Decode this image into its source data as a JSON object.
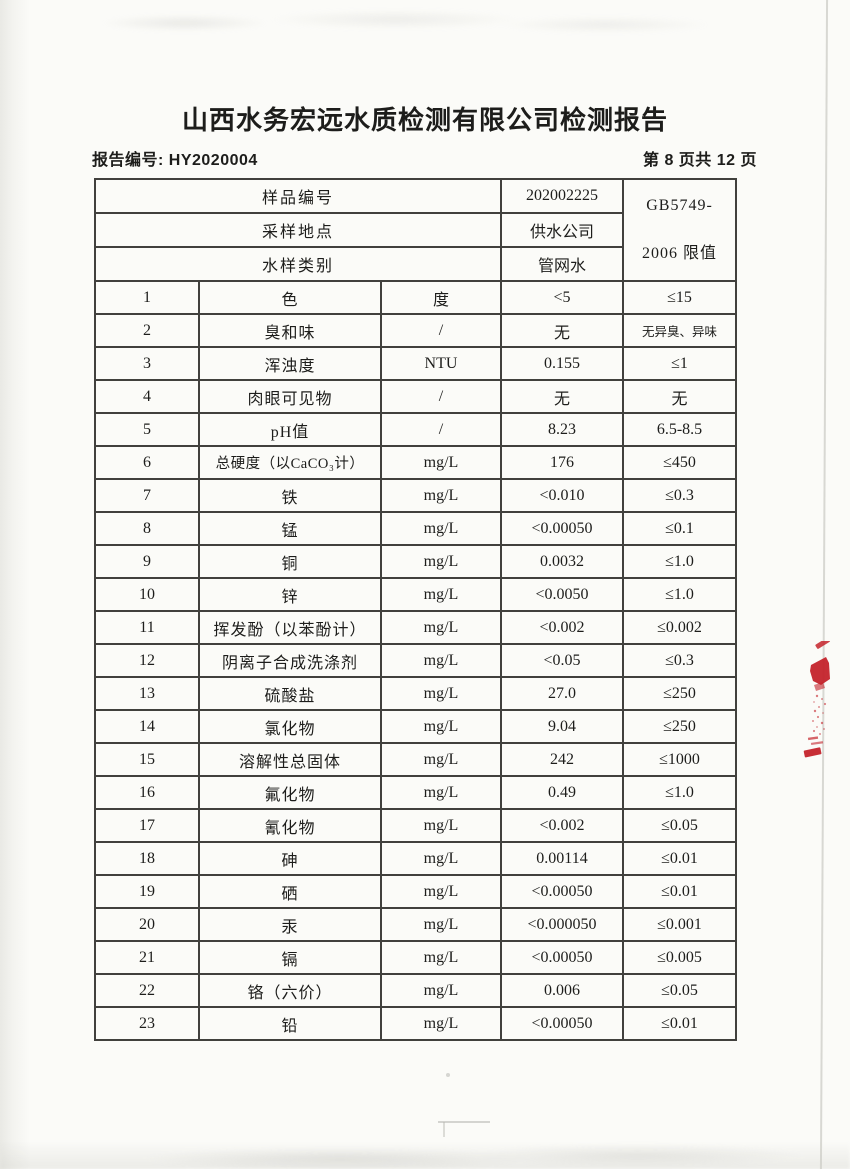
{
  "page": {
    "title": "山西水务宏远水质检测有限公司检测报告",
    "report_no": "报告编号: HY2020004",
    "page_indicator": "第 8 页共 12 页"
  },
  "table": {
    "header": {
      "rows": [
        {
          "label": "样品编号",
          "value": "202002225"
        },
        {
          "label": "采样地点",
          "value": "供水公司"
        },
        {
          "label": "水样类别",
          "value": "管网水"
        }
      ],
      "limit_line1": "GB5749-",
      "limit_line2": "2006 限值"
    },
    "rows": [
      {
        "no": "1",
        "item": "色",
        "unit": "度",
        "value": "<5",
        "limit": "≤15"
      },
      {
        "no": "2",
        "item": "臭和味",
        "unit": "/",
        "value": "无",
        "limit": "无异臭、异味"
      },
      {
        "no": "3",
        "item": "浑浊度",
        "unit": "NTU",
        "value": "0.155",
        "limit": "≤1"
      },
      {
        "no": "4",
        "item": "肉眼可见物",
        "unit": "/",
        "value": "无",
        "limit": "无"
      },
      {
        "no": "5",
        "item": "pH值",
        "unit": "/",
        "value": "8.23",
        "limit": "6.5-8.5"
      },
      {
        "no": "6",
        "item": "总硬度（以CaCO₃计）",
        "unit": "mg/L",
        "value": "176",
        "limit": "≤450"
      },
      {
        "no": "7",
        "item": "铁",
        "unit": "mg/L",
        "value": "<0.010",
        "limit": "≤0.3"
      },
      {
        "no": "8",
        "item": "锰",
        "unit": "mg/L",
        "value": "<0.00050",
        "limit": "≤0.1"
      },
      {
        "no": "9",
        "item": "铜",
        "unit": "mg/L",
        "value": "0.0032",
        "limit": "≤1.0"
      },
      {
        "no": "10",
        "item": "锌",
        "unit": "mg/L",
        "value": "<0.0050",
        "limit": "≤1.0"
      },
      {
        "no": "11",
        "item": "挥发酚（以苯酚计）",
        "unit": "mg/L",
        "value": "<0.002",
        "limit": "≤0.002"
      },
      {
        "no": "12",
        "item": "阴离子合成洗涤剂",
        "unit": "mg/L",
        "value": "<0.05",
        "limit": "≤0.3"
      },
      {
        "no": "13",
        "item": "硫酸盐",
        "unit": "mg/L",
        "value": "27.0",
        "limit": "≤250"
      },
      {
        "no": "14",
        "item": "氯化物",
        "unit": "mg/L",
        "value": "9.04",
        "limit": "≤250"
      },
      {
        "no": "15",
        "item": "溶解性总固体",
        "unit": "mg/L",
        "value": "242",
        "limit": "≤1000"
      },
      {
        "no": "16",
        "item": "氟化物",
        "unit": "mg/L",
        "value": "0.49",
        "limit": "≤1.0"
      },
      {
        "no": "17",
        "item": "氰化物",
        "unit": "mg/L",
        "value": "<0.002",
        "limit": "≤0.05"
      },
      {
        "no": "18",
        "item": "砷",
        "unit": "mg/L",
        "value": "0.00114",
        "limit": "≤0.01"
      },
      {
        "no": "19",
        "item": "硒",
        "unit": "mg/L",
        "value": "<0.00050",
        "limit": "≤0.01"
      },
      {
        "no": "20",
        "item": "汞",
        "unit": "mg/L",
        "value": "<0.000050",
        "limit": "≤0.001"
      },
      {
        "no": "21",
        "item": "镉",
        "unit": "mg/L",
        "value": "<0.00050",
        "limit": "≤0.005"
      },
      {
        "no": "22",
        "item": "铬（六价）",
        "unit": "mg/L",
        "value": "0.006",
        "limit": "≤0.05"
      },
      {
        "no": "23",
        "item": "铅",
        "unit": "mg/L",
        "value": "<0.00050",
        "limit": "≤0.01"
      }
    ]
  },
  "colors": {
    "stamp_red": "#c4232b",
    "table_line": "#41403d",
    "ink": "#1d1d1b",
    "paper": "#fbfbf8"
  }
}
